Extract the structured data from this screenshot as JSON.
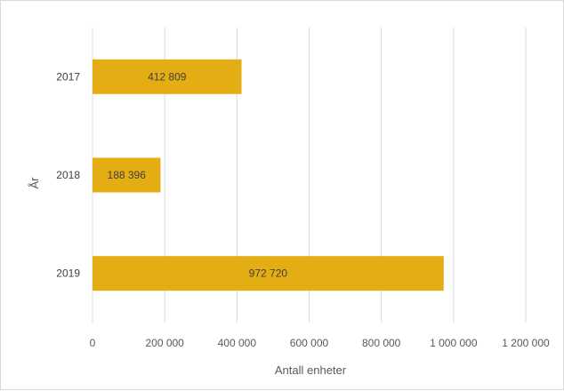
{
  "chart_data": {
    "type": "bar",
    "orientation": "horizontal",
    "categories": [
      "2017",
      "2018",
      "2019"
    ],
    "values": [
      412809,
      188396,
      972720
    ],
    "data_labels": [
      "412 809",
      "188 396",
      "972 720"
    ],
    "xlabel": "Antall enheter",
    "ylabel": "År",
    "xlim": [
      0,
      1200000
    ],
    "xticks": [
      0,
      200000,
      400000,
      600000,
      800000,
      1000000,
      1200000
    ],
    "xtick_labels": [
      "0",
      "200 000",
      "400 000",
      "600 000",
      "800 000",
      "1 000 000",
      "1 200 000"
    ],
    "grid": true,
    "legend": "none",
    "bar_color": "#e5ad14"
  }
}
